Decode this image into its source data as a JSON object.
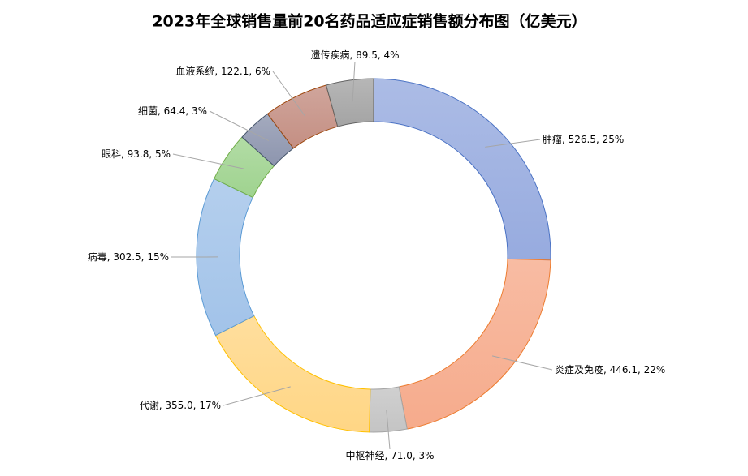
{
  "chart_data": {
    "type": "donut",
    "title": "2023年全球销售量前20名药品适应症销售额分布图（亿美元）",
    "categories": [
      "肿瘤",
      "炎症及免疫",
      "中枢神经",
      "代谢",
      "病毒",
      "眼科",
      "细菌",
      "血液系统",
      "遗传疾病"
    ],
    "values": [
      526.5,
      446.1,
      71.0,
      355.0,
      302.5,
      93.8,
      64.4,
      122.1,
      89.5
    ],
    "value_labels": [
      ", 526.5, 25%",
      ", 446.1, 22%",
      ", 71.0, 3%",
      ", 355.0, 17%",
      ", 302.5, 15%",
      ", 93.8, 5%",
      ", 64.4, 3%",
      ", 122.1, 6%",
      ", 89.5, 4%"
    ],
    "colors": [
      "#97abdf",
      "#f6ab8c",
      "#c4c4c4",
      "#ffd685",
      "#a2c3e9",
      "#9fd38f",
      "#8d95ae",
      "#c48f83",
      "#a4a4a4"
    ],
    "edge_colors": [
      "#4a72c4",
      "#ed7d31",
      "#a5a5a5",
      "#ffc000",
      "#5b9bd5",
      "#70ad47",
      "#44546a",
      "#9e480e",
      "#636363"
    ]
  }
}
